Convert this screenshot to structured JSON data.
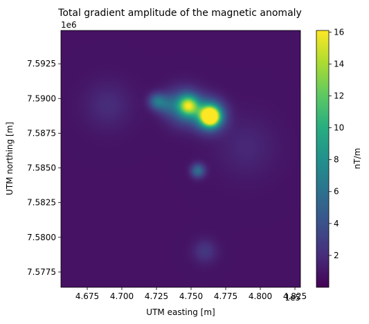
{
  "chart_data": {
    "type": "heatmap",
    "title": "Total gradient amplitude of the magnetic anomaly",
    "xlabel": "UTM easting [m]",
    "ylabel": "UTM northing [m]",
    "x_offset_label": "1e5",
    "y_offset_label": "1e6",
    "xlim": [
      465600,
      482900
    ],
    "ylim": [
      7576400,
      7594900
    ],
    "x_ticks": [
      {
        "value": 467500,
        "label": "4.675"
      },
      {
        "value": 470000,
        "label": "4.700"
      },
      {
        "value": 472500,
        "label": "4.725"
      },
      {
        "value": 475000,
        "label": "4.750"
      },
      {
        "value": 477500,
        "label": "4.775"
      },
      {
        "value": 480000,
        "label": "4.800"
      },
      {
        "value": 482500,
        "label": "4.825"
      }
    ],
    "y_ticks": [
      {
        "value": 7577500,
        "label": "7.5775"
      },
      {
        "value": 7580000,
        "label": "7.5800"
      },
      {
        "value": 7582500,
        "label": "7.5825"
      },
      {
        "value": 7585000,
        "label": "7.5850"
      },
      {
        "value": 7587500,
        "label": "7.5875"
      },
      {
        "value": 7590000,
        "label": "7.5900"
      },
      {
        "value": 7592500,
        "label": "7.5925"
      }
    ],
    "colorbar": {
      "label": "nT/m",
      "colormap": "viridis",
      "range": [
        0,
        16.1
      ],
      "ticks": [
        {
          "value": 2,
          "label": "2"
        },
        {
          "value": 4,
          "label": "4"
        },
        {
          "value": 6,
          "label": "6"
        },
        {
          "value": 8,
          "label": "8"
        },
        {
          "value": 10,
          "label": "10"
        },
        {
          "value": 12,
          "label": "12"
        },
        {
          "value": 14,
          "label": "14"
        },
        {
          "value": 16,
          "label": "16"
        }
      ]
    },
    "background_value": 0.8,
    "anomalies": [
      {
        "easting": 476400,
        "northing": 7588700,
        "peak": 16.0,
        "radius": 450
      },
      {
        "easting": 476300,
        "northing": 7588800,
        "peak": 9.0,
        "radius": 750
      },
      {
        "easting": 474800,
        "northing": 7589500,
        "peak": 10.0,
        "radius": 500
      },
      {
        "easting": 474500,
        "northing": 7589400,
        "peak": 5.0,
        "radius": 900
      },
      {
        "easting": 472500,
        "northing": 7589800,
        "peak": 4.5,
        "radius": 400
      },
      {
        "easting": 473200,
        "northing": 7589600,
        "peak": 3.0,
        "radius": 500
      },
      {
        "easting": 475500,
        "northing": 7584800,
        "peak": 5.0,
        "radius": 350
      },
      {
        "easting": 476000,
        "northing": 7579000,
        "peak": 1.8,
        "radius": 600
      },
      {
        "easting": 469000,
        "northing": 7589500,
        "peak": 1.2,
        "radius": 1200
      },
      {
        "easting": 479000,
        "northing": 7586500,
        "peak": 1.0,
        "radius": 1500
      }
    ]
  }
}
